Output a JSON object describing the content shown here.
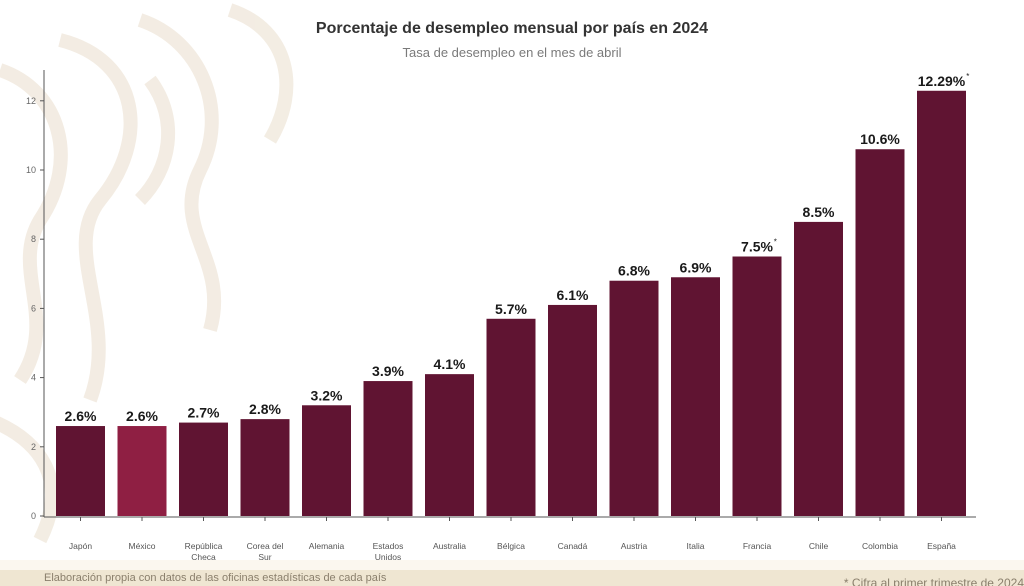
{
  "chart_data": {
    "type": "bar",
    "title": "Porcentaje de desempleo mensual por país en 2024",
    "subtitle": "Tasa de desempleo en el mes de abril",
    "categories": [
      [
        "Japón"
      ],
      [
        "México"
      ],
      [
        "República",
        "Checa"
      ],
      [
        "Corea del",
        "Sur"
      ],
      [
        "Alemania"
      ],
      [
        "Estados",
        "Unidos"
      ],
      [
        "Australia"
      ],
      [
        "Bélgica"
      ],
      [
        "Canadá"
      ],
      [
        "Austria"
      ],
      [
        "Italia"
      ],
      [
        "Francia"
      ],
      [
        "Chile"
      ],
      [
        "Colombia"
      ],
      [
        "España"
      ]
    ],
    "values": [
      2.6,
      2.6,
      2.7,
      2.8,
      3.2,
      3.9,
      4.1,
      5.7,
      6.1,
      6.8,
      6.9,
      7.5,
      8.5,
      10.6,
      12.29
    ],
    "data_labels": [
      "2.6%",
      "2.6%",
      "2.7%",
      "2.8%",
      "3.2%",
      "3.9%",
      "4.1%",
      "5.7%",
      "6.1%",
      "6.8%",
      "6.9%",
      "7.5%",
      "8.5%",
      "10.6%",
      "12.29%"
    ],
    "asterisk_flags": [
      false,
      false,
      false,
      false,
      false,
      false,
      false,
      false,
      false,
      false,
      false,
      true,
      false,
      false,
      true
    ],
    "highlight_index": 1,
    "yticks": [
      0,
      2,
      4,
      6,
      8,
      10,
      12
    ],
    "ylim": [
      0,
      13
    ],
    "grid": false,
    "colors": {
      "bar": "#601432",
      "highlight": "#8f1f43",
      "label": "#1a1a1a",
      "axis": "#555555"
    }
  },
  "footer": {
    "source": "Elaboración propia con datos de las oficinas estadísticas de cada país",
    "note": "* Cifra al primer trimestre de 2024"
  }
}
